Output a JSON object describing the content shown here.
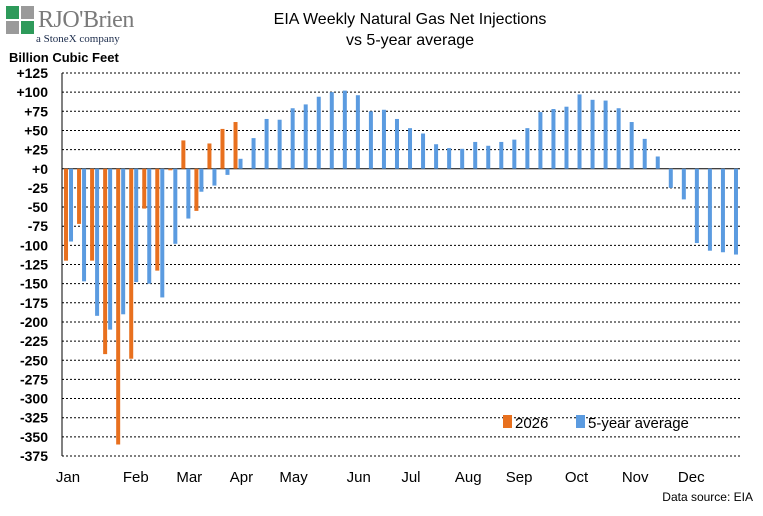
{
  "logo": {
    "brand": "RJO'Brien",
    "tagline": "a StoneX company"
  },
  "colors": {
    "series_2026": "#e8701e",
    "series_5yr": "#5b9be0",
    "grid": "#000000",
    "logo_green": "#2e9a5a",
    "logo_gray": "#9a9a9a"
  },
  "chart_data": {
    "type": "bar",
    "title": "EIA Weekly Natural Gas Net Injections",
    "subtitle": "vs 5-year average",
    "ylabel": "Billion Cubic Feet",
    "ylim": [
      -375,
      125
    ],
    "yticks": [
      125,
      100,
      75,
      50,
      25,
      0,
      -25,
      -50,
      -75,
      -100,
      -125,
      -150,
      -175,
      -200,
      -225,
      -250,
      -275,
      -300,
      -325,
      -350,
      -375
    ],
    "ytick_labels": [
      "+125",
      "+100",
      "+75",
      "+50",
      "+25",
      "+0",
      "-25",
      "-50",
      "-75",
      "-100",
      "-125",
      "-150",
      "-175",
      "-200",
      "-225",
      "-250",
      "-275",
      "-300",
      "-325",
      "-350",
      "-375"
    ],
    "grid": "horizontal dashed",
    "legend_position": "bottom-right",
    "x_month_labels": [
      "Jan",
      "Feb",
      "Mar",
      "Apr",
      "May",
      "Jun",
      "Jul",
      "Aug",
      "Sep",
      "Oct",
      "Nov",
      "Dec"
    ],
    "x_month_label_week": [
      0,
      5.2,
      9.3,
      13.3,
      17.3,
      22.3,
      26.3,
      30.7,
      34.6,
      39,
      43.5,
      47.8
    ],
    "weeks": 52,
    "series": [
      {
        "name": "2026",
        "values": [
          -120,
          -72,
          -120,
          -242,
          -360,
          -248,
          -52,
          -133,
          -2,
          37,
          -55,
          33,
          52,
          61,
          null,
          null,
          null,
          null,
          null,
          null,
          null,
          null,
          null,
          null,
          null,
          null,
          null,
          null,
          null,
          null,
          null,
          null,
          null,
          null,
          null,
          null,
          null,
          null,
          null,
          null,
          null,
          null,
          null,
          null,
          null,
          null,
          null,
          null,
          null,
          null,
          null,
          null
        ]
      },
      {
        "name": "5-year average",
        "values": [
          -95,
          -147,
          -192,
          -210,
          -190,
          -148,
          -150,
          -168,
          -98,
          -65,
          -30,
          -22,
          -8,
          13,
          40,
          65,
          64,
          79,
          84,
          94,
          100,
          102,
          96,
          75,
          77,
          65,
          53,
          46,
          32,
          27,
          26,
          35,
          30,
          35,
          38,
          53,
          74,
          78,
          81,
          97,
          90,
          89,
          79,
          61,
          39,
          16,
          -25,
          -40,
          -97,
          -107,
          -109,
          -112
        ]
      }
    ]
  },
  "source_text": "Data source: EIA"
}
